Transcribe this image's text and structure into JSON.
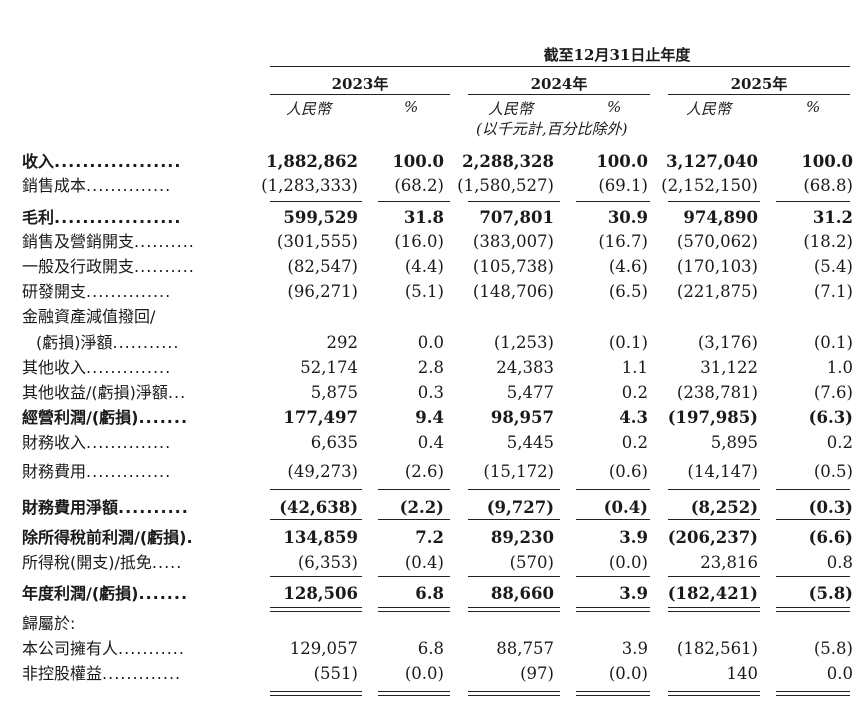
{
  "header": {
    "period": "截至12月31日止年度",
    "years": [
      "2023年",
      "2024年",
      "2025年"
    ],
    "unit_rmb": "人民幣",
    "unit_pct": "%",
    "note": "(以千元計,百分比除外)"
  },
  "rows": [
    {
      "label": "收入",
      "dots": "..................",
      "bold": true,
      "values": [
        "1,882,862",
        "100.0",
        "2,288,328",
        "100.0",
        "3,127,040",
        "100.0"
      ]
    },
    {
      "label": "銷售成本",
      "dots": "..............",
      "bold": false,
      "values": [
        "(1,283,333)",
        "(68.2)",
        "(1,580,527)",
        "(69.1)",
        "(2,152,150)",
        "(68.8)"
      ]
    },
    {
      "label": "毛利",
      "dots": "..................",
      "bold": true,
      "values": [
        "599,529",
        "31.8",
        "707,801",
        "30.9",
        "974,890",
        "31.2"
      ]
    },
    {
      "label": "銷售及營銷開支",
      "dots": "..........",
      "bold": false,
      "values": [
        "(301,555)",
        "(16.0)",
        "(383,007)",
        "(16.7)",
        "(570,062)",
        "(18.2)"
      ]
    },
    {
      "label": "一般及行政開支",
      "dots": "..........",
      "bold": false,
      "values": [
        "(82,547)",
        "(4.4)",
        "(105,738)",
        "(4.6)",
        "(170,103)",
        "(5.4)"
      ]
    },
    {
      "label": "研發開支",
      "dots": "..............",
      "bold": false,
      "values": [
        "(96,271)",
        "(5.1)",
        "(148,706)",
        "(6.5)",
        "(221,875)",
        "(7.1)"
      ]
    },
    {
      "label": "金融資產減值撥回/",
      "dots": "",
      "bold": false,
      "values": [
        "",
        "",
        "",
        "",
        "",
        ""
      ]
    },
    {
      "label": "(虧損)淨額",
      "dots": "...........",
      "bold": false,
      "indent": true,
      "values": [
        "292",
        "0.0",
        "(1,253)",
        "(0.1)",
        "(3,176)",
        "(0.1)"
      ]
    },
    {
      "label": "其他收入",
      "dots": "..............",
      "bold": false,
      "values": [
        "52,174",
        "2.8",
        "24,383",
        "1.1",
        "31,122",
        "1.0"
      ]
    },
    {
      "label": "其他收益/(虧損)淨額",
      "dots": "...",
      "bold": false,
      "values": [
        "5,875",
        "0.3",
        "5,477",
        "0.2",
        "(238,781)",
        "(7.6)"
      ]
    },
    {
      "label": "經營利潤/(虧損)",
      "dots": ".......",
      "bold": true,
      "values": [
        "177,497",
        "9.4",
        "98,957",
        "4.3",
        "(197,985)",
        "(6.3)"
      ]
    },
    {
      "label": "財務收入",
      "dots": "..............",
      "bold": false,
      "values": [
        "6,635",
        "0.4",
        "5,445",
        "0.2",
        "5,895",
        "0.2"
      ]
    },
    {
      "label": "財務費用",
      "dots": "..............",
      "bold": false,
      "values": [
        "(49,273)",
        "(2.6)",
        "(15,172)",
        "(0.6)",
        "(14,147)",
        "(0.5)"
      ]
    },
    {
      "label": "財務費用淨額",
      "dots": "..........",
      "bold": true,
      "values": [
        "(42,638)",
        "(2.2)",
        "(9,727)",
        "(0.4)",
        "(8,252)",
        "(0.3)"
      ]
    },
    {
      "label": "除所得稅前利潤/(虧損)",
      "dots": ".",
      "bold": true,
      "values": [
        "134,859",
        "7.2",
        "89,230",
        "3.9",
        "(206,237)",
        "(6.6)"
      ]
    },
    {
      "label": "所得稅(開支)/抵免",
      "dots": ".....",
      "bold": false,
      "values": [
        "(6,353)",
        "(0.4)",
        "(570)",
        "(0.0)",
        "23,816",
        "0.8"
      ]
    },
    {
      "label": "年度利潤/(虧損)",
      "dots": ".......",
      "bold": true,
      "values": [
        "128,506",
        "6.8",
        "88,660",
        "3.9",
        "(182,421)",
        "(5.8)"
      ]
    },
    {
      "label": "歸屬於:",
      "dots": "",
      "bold": false,
      "values": [
        "",
        "",
        "",
        "",
        "",
        ""
      ]
    },
    {
      "label": "本公司擁有人",
      "dots": "...........",
      "bold": false,
      "values": [
        "129,057",
        "6.8",
        "88,757",
        "3.9",
        "(182,561)",
        "(5.8)"
      ]
    },
    {
      "label": "非控股權益",
      "dots": ".............",
      "bold": false,
      "values": [
        "(551)",
        "(0.0)",
        "(97)",
        "(0.0)",
        "140",
        "0.0"
      ]
    }
  ]
}
